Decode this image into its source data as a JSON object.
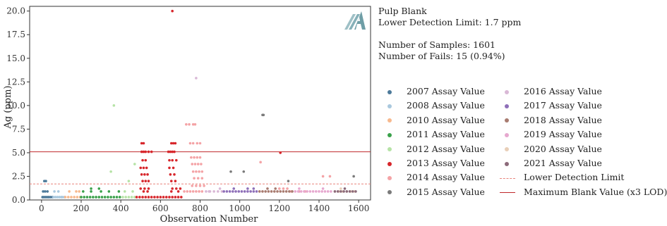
{
  "info": {
    "sample_type": "Pulp Blank",
    "detection_limit_text": "Lower Detection Limit: 1.7 ppm",
    "num_samples_text": "Number of Samples: 1601",
    "num_fails_text": "Number of Fails: 15 (0.94%)"
  },
  "colors": {
    "lower_detection_limit": "#e8847c",
    "maximum_blank_value": "#c0282b",
    "logo": "#6f9ea6"
  },
  "chart_data": {
    "type": "scatter",
    "xlabel": "Observation Number",
    "ylabel": "Ag (ppm)",
    "xlim": [
      -60,
      1660
    ],
    "ylim": [
      0,
      20.5
    ],
    "xticks": [
      0,
      200,
      400,
      600,
      800,
      1000,
      1200,
      1400,
      1600
    ],
    "yticks": [
      0.0,
      2.5,
      5.0,
      7.5,
      10.0,
      12.5,
      15.0,
      17.5,
      20.0
    ],
    "ytick_labels": [
      "0.0",
      "2.5",
      "5.0",
      "7.5",
      "10.0",
      "12.5",
      "15.0",
      "17.5",
      "20.0"
    ],
    "grid": false,
    "lower_detection_limit": 1.7,
    "maximum_blank_value": 5.1,
    "series": [
      {
        "name": "2007 Assay Value",
        "color": "#4d7a9a",
        "points": [
          [
            5,
            0.3
          ],
          [
            12,
            0.3
          ],
          [
            20,
            0.3
          ],
          [
            28,
            0.3
          ],
          [
            36,
            0.3
          ],
          [
            8,
            0.9
          ],
          [
            18,
            0.9
          ],
          [
            30,
            0.9
          ],
          [
            14,
            2.0
          ],
          [
            22,
            2.0
          ],
          [
            45,
            0.3
          ],
          [
            55,
            0.3
          ]
        ]
      },
      {
        "name": "2008 Assay Value",
        "color": "#a9c8de",
        "points": [
          [
            60,
            0.3
          ],
          [
            70,
            0.3
          ],
          [
            80,
            0.3
          ],
          [
            90,
            0.3
          ],
          [
            100,
            0.3
          ],
          [
            65,
            0.9
          ],
          [
            85,
            0.9
          ],
          [
            105,
            0.3
          ],
          [
            115,
            0.3
          ]
        ]
      },
      {
        "name": "2010 Assay Value",
        "color": "#f7b98e",
        "points": [
          [
            120,
            0.3
          ],
          [
            135,
            0.3
          ],
          [
            150,
            0.3
          ],
          [
            165,
            0.3
          ],
          [
            180,
            0.3
          ],
          [
            195,
            0.3
          ],
          [
            140,
            0.9
          ],
          [
            175,
            0.9
          ],
          [
            190,
            0.9
          ]
        ]
      },
      {
        "name": "2011 Assay Value",
        "color": "#3aa14a",
        "points": [
          [
            200,
            0.3
          ],
          [
            215,
            0.3
          ],
          [
            230,
            0.3
          ],
          [
            245,
            0.3
          ],
          [
            260,
            0.3
          ],
          [
            275,
            0.3
          ],
          [
            290,
            0.3
          ],
          [
            305,
            0.3
          ],
          [
            320,
            0.3
          ],
          [
            335,
            0.3
          ],
          [
            350,
            0.3
          ],
          [
            365,
            0.3
          ],
          [
            380,
            0.3
          ],
          [
            395,
            0.3
          ],
          [
            210,
            0.9
          ],
          [
            250,
            0.9
          ],
          [
            300,
            0.9
          ],
          [
            340,
            0.9
          ],
          [
            390,
            0.9
          ],
          [
            250,
            1.2
          ],
          [
            290,
            1.2
          ]
        ]
      },
      {
        "name": "2012 Assay Value",
        "color": "#b6e3a6",
        "points": [
          [
            410,
            0.3
          ],
          [
            425,
            0.3
          ],
          [
            440,
            0.3
          ],
          [
            455,
            0.3
          ],
          [
            470,
            0.3
          ],
          [
            420,
            0.9
          ],
          [
            460,
            0.9
          ],
          [
            365,
            10.0
          ],
          [
            350,
            3.0
          ],
          [
            440,
            2.0
          ],
          [
            470,
            3.8
          ]
        ]
      },
      {
        "name": "2013 Assay Value",
        "color": "#d7262b",
        "points": [
          [
            480,
            0.3
          ],
          [
            495,
            0.3
          ],
          [
            510,
            0.3
          ],
          [
            525,
            0.3
          ],
          [
            540,
            0.3
          ],
          [
            555,
            0.3
          ],
          [
            570,
            0.3
          ],
          [
            585,
            0.3
          ],
          [
            600,
            0.3
          ],
          [
            615,
            0.3
          ],
          [
            630,
            0.3
          ],
          [
            645,
            0.3
          ],
          [
            660,
            0.3
          ],
          [
            675,
            0.3
          ],
          [
            690,
            0.3
          ],
          [
            705,
            0.3
          ],
          [
            505,
            5.1
          ],
          [
            515,
            5.1
          ],
          [
            525,
            5.1
          ],
          [
            540,
            5.1
          ],
          [
            555,
            5.1
          ],
          [
            640,
            5.1
          ],
          [
            650,
            5.1
          ],
          [
            660,
            5.1
          ],
          [
            670,
            5.1
          ],
          [
            505,
            6.0
          ],
          [
            515,
            6.0
          ],
          [
            655,
            6.0
          ],
          [
            665,
            6.0
          ],
          [
            675,
            6.0
          ],
          [
            510,
            4.2
          ],
          [
            525,
            4.2
          ],
          [
            645,
            4.2
          ],
          [
            660,
            4.2
          ],
          [
            680,
            4.2
          ],
          [
            500,
            3.4
          ],
          [
            515,
            3.4
          ],
          [
            530,
            3.4
          ],
          [
            645,
            3.4
          ],
          [
            665,
            3.4
          ],
          [
            505,
            2.7
          ],
          [
            520,
            2.7
          ],
          [
            535,
            2.7
          ],
          [
            650,
            2.7
          ],
          [
            670,
            2.7
          ],
          [
            510,
            2.0
          ],
          [
            525,
            2.0
          ],
          [
            540,
            2.0
          ],
          [
            655,
            2.0
          ],
          [
            675,
            2.0
          ],
          [
            500,
            1.2
          ],
          [
            520,
            1.2
          ],
          [
            540,
            1.2
          ],
          [
            660,
            1.2
          ],
          [
            680,
            1.2
          ],
          [
            700,
            1.2
          ],
          [
            515,
            0.9
          ],
          [
            535,
            0.9
          ],
          [
            655,
            0.9
          ],
          [
            690,
            0.9
          ],
          [
            1205,
            5.0
          ],
          [
            660,
            20.0
          ]
        ]
      },
      {
        "name": "2014 Assay Value",
        "color": "#f4a3a6",
        "points": [
          [
            720,
            0.9
          ],
          [
            735,
            0.9
          ],
          [
            750,
            0.9
          ],
          [
            765,
            0.9
          ],
          [
            780,
            0.9
          ],
          [
            795,
            0.9
          ],
          [
            810,
            0.9
          ],
          [
            730,
            8.0
          ],
          [
            745,
            8.0
          ],
          [
            765,
            8.0
          ],
          [
            775,
            8.0
          ],
          [
            750,
            6.0
          ],
          [
            765,
            6.0
          ],
          [
            785,
            6.0
          ],
          [
            800,
            6.0
          ],
          [
            755,
            4.5
          ],
          [
            770,
            4.5
          ],
          [
            785,
            4.5
          ],
          [
            800,
            4.5
          ],
          [
            760,
            3.8
          ],
          [
            775,
            3.8
          ],
          [
            790,
            3.8
          ],
          [
            805,
            3.8
          ],
          [
            765,
            3.0
          ],
          [
            780,
            3.0
          ],
          [
            795,
            3.0
          ],
          [
            810,
            3.0
          ],
          [
            770,
            2.3
          ],
          [
            790,
            2.3
          ],
          [
            810,
            2.3
          ],
          [
            760,
            1.5
          ],
          [
            780,
            1.5
          ],
          [
            800,
            1.5
          ],
          [
            820,
            1.5
          ],
          [
            1200,
            1.2
          ],
          [
            1220,
            1.2
          ],
          [
            1240,
            1.2
          ],
          [
            1260,
            0.9
          ],
          [
            1300,
            0.9
          ],
          [
            1330,
            0.9
          ],
          [
            1420,
            2.5
          ],
          [
            1455,
            2.5
          ],
          [
            1105,
            4.0
          ]
        ]
      },
      {
        "name": "2015 Assay Value",
        "color": "#7a7a7a",
        "points": [
          [
            955,
            3.0
          ],
          [
            1020,
            3.0
          ],
          [
            1115,
            9.0
          ],
          [
            1120,
            9.0
          ],
          [
            1245,
            2.0
          ],
          [
            1575,
            2.5
          ]
        ]
      },
      {
        "name": "2016 Assay Value",
        "color": "#d9b8d6",
        "points": [
          [
            830,
            0.9
          ],
          [
            850,
            0.9
          ],
          [
            870,
            0.9
          ],
          [
            890,
            0.9
          ],
          [
            910,
            0.9
          ],
          [
            780,
            12.9
          ],
          [
            845,
            0.9
          ],
          [
            900,
            1.2
          ]
        ]
      },
      {
        "name": "2017 Assay Value",
        "color": "#8e6fb8",
        "points": [
          [
            920,
            0.9
          ],
          [
            935,
            0.9
          ],
          [
            950,
            0.9
          ],
          [
            965,
            0.9
          ],
          [
            980,
            0.9
          ],
          [
            995,
            0.9
          ],
          [
            1010,
            0.9
          ],
          [
            1025,
            0.9
          ],
          [
            1040,
            0.9
          ],
          [
            1055,
            0.9
          ],
          [
            1070,
            0.9
          ],
          [
            1085,
            0.9
          ],
          [
            970,
            1.2
          ],
          [
            1040,
            1.2
          ],
          [
            1070,
            1.2
          ]
        ]
      },
      {
        "name": "2018 Assay Value",
        "color": "#a87b70",
        "points": [
          [
            1100,
            0.9
          ],
          [
            1115,
            0.9
          ],
          [
            1130,
            0.9
          ],
          [
            1145,
            0.9
          ],
          [
            1160,
            0.9
          ],
          [
            1175,
            0.9
          ],
          [
            1190,
            0.9
          ],
          [
            1205,
            0.9
          ],
          [
            1220,
            0.9
          ],
          [
            1235,
            0.9
          ],
          [
            1250,
            0.9
          ],
          [
            1265,
            0.9
          ],
          [
            1140,
            1.2
          ],
          [
            1180,
            1.2
          ]
        ]
      },
      {
        "name": "2019 Assay Value",
        "color": "#e6a8cf",
        "points": [
          [
            1280,
            0.9
          ],
          [
            1295,
            0.9
          ],
          [
            1310,
            0.9
          ],
          [
            1325,
            0.9
          ],
          [
            1340,
            0.9
          ],
          [
            1355,
            0.9
          ],
          [
            1370,
            0.9
          ],
          [
            1385,
            0.9
          ],
          [
            1400,
            0.9
          ],
          [
            1415,
            0.9
          ],
          [
            1430,
            0.9
          ],
          [
            1445,
            0.9
          ],
          [
            1460,
            0.9
          ],
          [
            1300,
            1.2
          ],
          [
            1420,
            1.2
          ]
        ]
      },
      {
        "name": "2020 Assay Value",
        "color": "#e8cfb8",
        "points": [
          [
            1480,
            0.9
          ],
          [
            1500,
            0.9
          ],
          [
            1520,
            0.9
          ],
          [
            1540,
            0.9
          ],
          [
            1560,
            0.9
          ],
          [
            1580,
            0.9
          ],
          [
            1510,
            1.2
          ]
        ]
      },
      {
        "name": "2021 Assay Value",
        "color": "#8c6a7a",
        "points": [
          [
            1480,
            0.9
          ],
          [
            1495,
            0.9
          ],
          [
            1510,
            0.9
          ],
          [
            1525,
            0.9
          ],
          [
            1540,
            0.9
          ],
          [
            1555,
            0.9
          ],
          [
            1570,
            0.9
          ],
          [
            1585,
            0.9
          ],
          [
            1530,
            1.2
          ]
        ]
      }
    ],
    "lines": [
      {
        "name": "Lower Detection Limit",
        "value": 1.7,
        "style": "dashed",
        "color": "#e8847c"
      },
      {
        "name": "Maximum Blank Value (x3 LOD)",
        "value": 5.1,
        "style": "solid",
        "color": "#c0282b"
      }
    ],
    "legend_placement": "right"
  }
}
